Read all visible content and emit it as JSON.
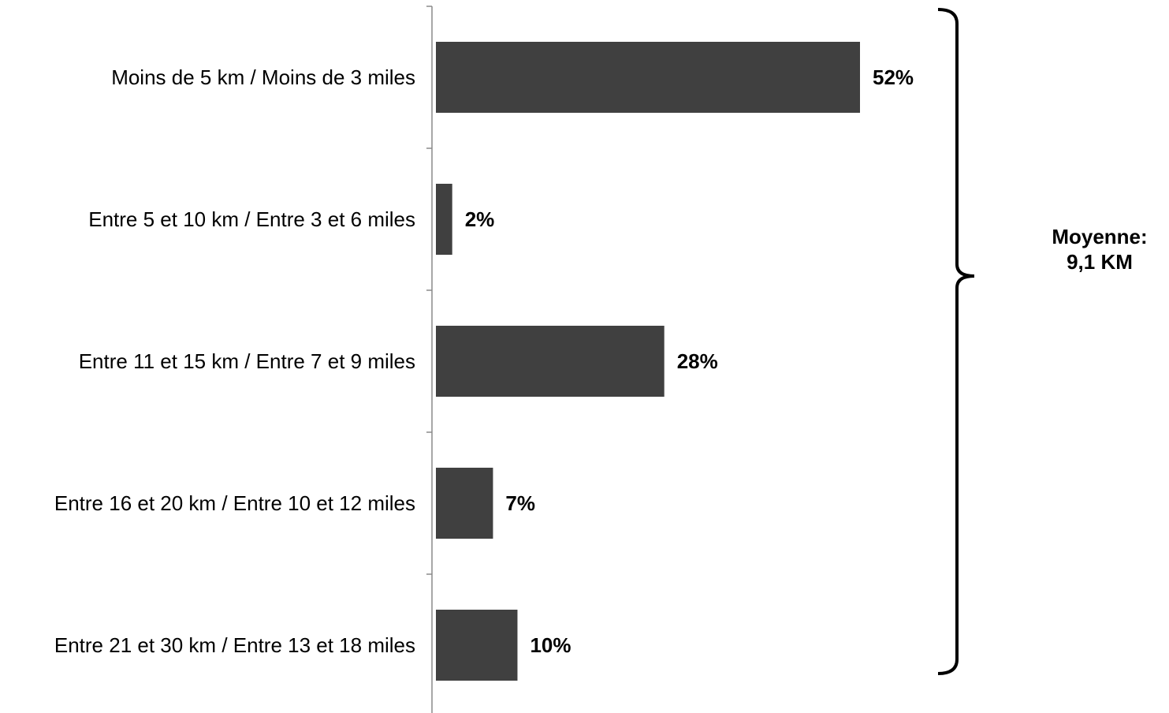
{
  "chart_data": {
    "type": "bar",
    "orientation": "horizontal",
    "categories": [
      "Moins de 5 km / Moins de 3 miles",
      "Entre 5 et 10 km / Entre 3 et 6 miles",
      "Entre 11 et 15 km / Entre 7 et 9 miles",
      "Entre 16 et 20 km / Entre 10 et 12 miles",
      "Entre 21 et 30 km / Entre 13 et 18 miles"
    ],
    "values": [
      52,
      2,
      28,
      7,
      10
    ],
    "value_labels": [
      "52%",
      "2%",
      "28%",
      "7%",
      "10%"
    ],
    "xlim": [
      0,
      100
    ],
    "bar_color": "#404040",
    "grid": false,
    "annotation": {
      "line1": "Moyenne:",
      "line2": "9,1 KM"
    }
  }
}
